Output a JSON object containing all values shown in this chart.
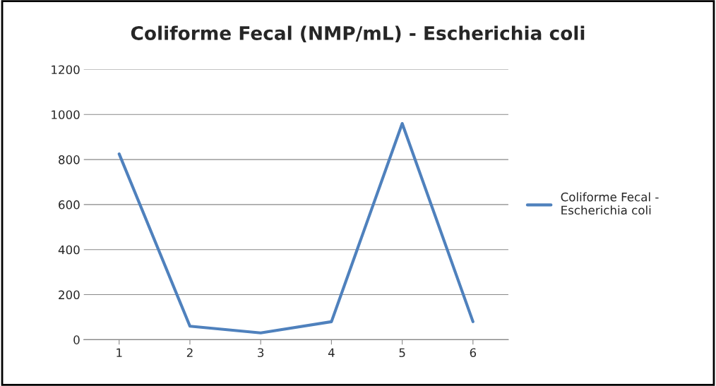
{
  "chart_data": {
    "type": "line",
    "title": "Coliforme Fecal (NMP/mL) - Escherichia coli",
    "categories": [
      "1",
      "2",
      "3",
      "4",
      "5",
      "6"
    ],
    "series": [
      {
        "name": "Coliforme Fecal - Escherichia coli",
        "color": "#4f81bd",
        "values": [
          825,
          60,
          30,
          80,
          960,
          80
        ]
      }
    ],
    "ylim": [
      0,
      1200
    ],
    "yticks": [
      0,
      200,
      400,
      600,
      800,
      1000,
      1200
    ],
    "grid": "y",
    "legend": "right",
    "marker": "none",
    "line_style": "solid"
  }
}
